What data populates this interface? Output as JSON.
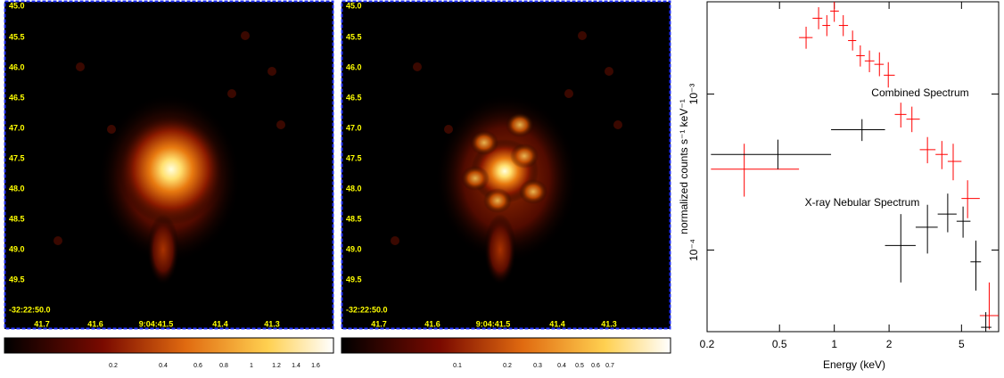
{
  "images": [
    {
      "dec_labels": [
        "45.0",
        "45.5",
        "46.0",
        "46.5",
        "47.0",
        "47.5",
        "48.0",
        "48.5",
        "49.0",
        "49.5",
        "-32:22:50.0"
      ],
      "ra_labels": [
        "41.7",
        "41.6",
        "9:04:41.5",
        "41.4",
        "41.3"
      ],
      "colorbar_labels": [
        "0.2",
        "0.4",
        "0.6",
        "0.8",
        "1",
        "1.2",
        "1.4",
        "1.6"
      ]
    },
    {
      "dec_labels": [
        "45.0",
        "45.5",
        "46.0",
        "46.5",
        "47.0",
        "47.5",
        "48.0",
        "48.5",
        "49.0",
        "49.5",
        "-32:22:50.0"
      ],
      "ra_labels": [
        "41.7",
        "41.6",
        "9:04:41.5",
        "41.4",
        "41.3"
      ],
      "colorbar_labels": [
        "0.1",
        "0.2",
        "0.3",
        "0.4",
        "0.5",
        "0.6",
        "0.7"
      ]
    }
  ],
  "chart_data": {
    "type": "errorbar",
    "x_label": "Energy (keV)",
    "y_label": "normalized counts s⁻¹ keV⁻¹",
    "xlim": [
      0.2,
      8
    ],
    "ylim": [
      3e-05,
      0.0039
    ],
    "x_log": true,
    "y_log": true,
    "xticks": [
      0.2,
      0.5,
      1,
      2,
      5
    ],
    "yticks": [
      {
        "value": 0.0001,
        "label": "10⁻⁴"
      },
      {
        "value": 0.001,
        "label": "10⁻³"
      }
    ],
    "annotations": [
      "Combined Spectrum",
      "X-ray Nebular Spectrum"
    ],
    "series": [
      {
        "color": "#ff0000",
        "x": [
          0.32,
          0.7,
          0.82,
          0.91,
          1.0,
          1.12,
          1.26,
          1.39,
          1.56,
          1.77,
          1.98,
          2.32,
          2.67,
          3.25,
          3.9,
          4.5,
          5.4,
          7.1
        ],
        "x_low": [
          0.21,
          0.64,
          0.76,
          0.86,
          0.95,
          1.06,
          1.19,
          1.32,
          1.47,
          1.66,
          1.87,
          2.15,
          2.49,
          2.95,
          3.6,
          4.2,
          5.0,
          6.3
        ],
        "x_high": [
          0.64,
          0.76,
          0.86,
          0.95,
          1.06,
          1.19,
          1.32,
          1.47,
          1.66,
          1.87,
          2.15,
          2.49,
          2.95,
          3.6,
          4.2,
          5.0,
          6.3,
          8.0
        ],
        "values": [
          0.00033,
          0.0023,
          0.00306,
          0.00275,
          0.0034,
          0.00275,
          0.0022,
          0.00176,
          0.00163,
          0.00155,
          0.00132,
          0.00074,
          0.00069,
          0.00044,
          0.00041,
          0.00037,
          0.000214,
          3.8e-05
        ],
        "y_low": [
          0.00022,
          0.00195,
          0.0026,
          0.00235,
          0.0029,
          0.00235,
          0.0019,
          0.0015,
          0.00138,
          0.0013,
          0.0011,
          0.00061,
          0.00057,
          0.00036,
          0.00033,
          0.00028,
          0.00016,
          3.1e-05
        ],
        "y_high": [
          0.00048,
          0.0027,
          0.0036,
          0.0032,
          0.0039,
          0.0032,
          0.00255,
          0.00205,
          0.0019,
          0.00185,
          0.0016,
          0.00088,
          0.00083,
          0.00053,
          0.0005,
          0.00048,
          0.00028,
          6.2e-05
        ]
      },
      {
        "color": "#000000",
        "x": [
          0.49,
          1.42,
          2.32,
          3.25,
          4.2,
          5.1,
          6.0,
          6.8
        ],
        "x_low": [
          0.21,
          0.96,
          1.9,
          2.8,
          3.7,
          4.7,
          5.6,
          6.4
        ],
        "x_high": [
          0.96,
          1.9,
          2.8,
          3.7,
          4.7,
          5.6,
          6.4,
          7.3
        ],
        "values": [
          0.00041,
          0.00059,
          0.000107,
          0.00014,
          0.00017,
          0.000153,
          8.4e-05,
          3.2e-05
        ],
        "y_low": [
          0.00033,
          0.0005,
          6.2e-05,
          9.5e-05,
          0.00013,
          0.00012,
          5.5e-05,
          3e-05
        ],
        "y_high": [
          0.00051,
          0.00069,
          0.00017,
          0.000195,
          0.00023,
          0.00019,
          0.000115,
          4e-05
        ]
      }
    ]
  }
}
